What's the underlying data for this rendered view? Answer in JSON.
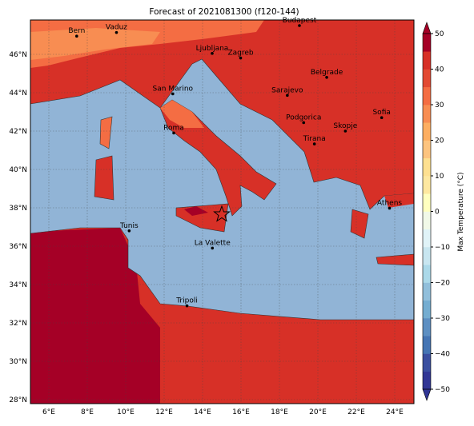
{
  "title": "Forecast of 2021081300 (f120-144)",
  "lon_ticks": [
    "6°E",
    "8°E",
    "10°E",
    "12°E",
    "14°E",
    "16°E",
    "18°E",
    "20°E",
    "22°E",
    "24°E"
  ],
  "lat_ticks": [
    "28°N",
    "30°N",
    "32°N",
    "34°N",
    "36°N",
    "38°N",
    "40°N",
    "42°N",
    "44°N",
    "46°N"
  ],
  "cities": [
    "Bern",
    "Vaduz",
    "Budapest",
    "Ljubljana",
    "Zagreb",
    "Belgrade",
    "San Marino",
    "Sarajevo",
    "Sofia",
    "Podgorica",
    "Skopje",
    "Roma",
    "Tirana",
    "Athens",
    "Tunis",
    "La Valette",
    "Tripoli"
  ],
  "colorbar": {
    "label": "Max Temperature (°C)",
    "lim": [
      -50,
      50
    ],
    "ticks": [
      {
        "value": -50,
        "label": "−50"
      },
      {
        "value": -40,
        "label": "−40"
      },
      {
        "value": -30,
        "label": "−30"
      },
      {
        "value": -20,
        "label": "−20"
      },
      {
        "value": -10,
        "label": "−10"
      },
      0,
      10,
      20,
      30,
      40,
      50
    ],
    "colors": [
      "#313695",
      "#3a4fa0",
      "#4575b4",
      "#5d8fc2",
      "#74add1",
      "#91bfdb",
      "#abd9e9",
      "#c8e6f0",
      "#e0f3f8",
      "#f1f9e8",
      "#ffffbf",
      "#fee8a0",
      "#fee090",
      "#fdc47f",
      "#fdae61",
      "#f88d52",
      "#f46d43",
      "#e34a33",
      "#d73027",
      "#a50026"
    ]
  }
}
